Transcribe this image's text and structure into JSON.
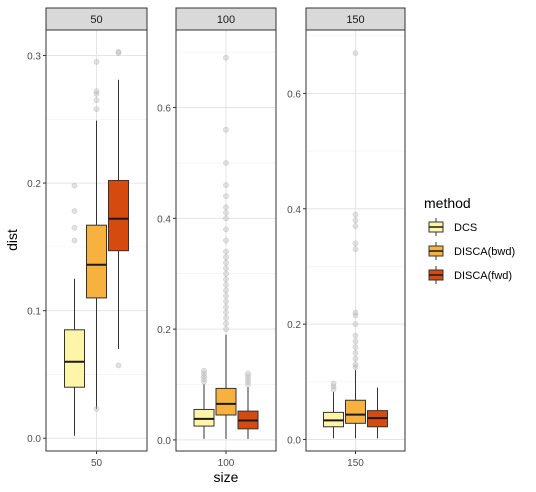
{
  "chart_data": {
    "type": "boxplot",
    "xlabel": "size",
    "ylabel": "dist",
    "legend": {
      "title": "method",
      "position": "right",
      "items": [
        {
          "name": "DCS",
          "color": "#FFF5A8"
        },
        {
          "name": "DISCA(bwd)",
          "color": "#F6B13E"
        },
        {
          "name": "DISCA(fwd)",
          "color": "#D54A0F"
        }
      ]
    },
    "grid": true,
    "facets": [
      {
        "strip": "50",
        "x_tick": "50",
        "ylim": [
          -0.01,
          0.32
        ],
        "y_ticks": [
          0.0,
          0.1,
          0.2,
          0.3
        ],
        "y_tick_labels": [
          "0.0",
          "0.1",
          "0.2",
          "0.3"
        ],
        "boxes": [
          {
            "method": "DCS",
            "whisker_low": 0.002,
            "q1": 0.04,
            "median": 0.06,
            "q3": 0.085,
            "whisker_high": 0.125,
            "outliers": [
              0.155,
              0.165,
              0.178,
              0.198
            ]
          },
          {
            "method": "DISCA(bwd)",
            "whisker_low": 0.023,
            "q1": 0.11,
            "median": 0.136,
            "q3": 0.167,
            "whisker_high": 0.249,
            "outliers": [
              0.023,
              0.258,
              0.265,
              0.27,
              0.272,
              0.295
            ]
          },
          {
            "method": "DISCA(fwd)",
            "whisker_low": 0.07,
            "q1": 0.147,
            "median": 0.172,
            "q3": 0.202,
            "whisker_high": 0.281,
            "outliers": [
              0.057,
              0.302,
              0.303
            ]
          }
        ]
      },
      {
        "strip": "100",
        "x_tick": "100",
        "ylim": [
          -0.02,
          0.74
        ],
        "y_ticks": [
          0.0,
          0.2,
          0.4,
          0.6
        ],
        "y_tick_labels": [
          "0.0",
          "0.2",
          "0.4",
          "0.6"
        ],
        "boxes": [
          {
            "method": "DCS",
            "whisker_low": 0.002,
            "q1": 0.025,
            "median": 0.038,
            "q3": 0.055,
            "whisker_high": 0.1,
            "outliers": [
              0.105,
              0.11,
              0.115,
              0.12,
              0.125
            ]
          },
          {
            "method": "DISCA(bwd)",
            "whisker_low": 0.002,
            "q1": 0.045,
            "median": 0.065,
            "q3": 0.093,
            "whisker_high": 0.19,
            "outliers": [
              0.2,
              0.21,
              0.22,
              0.23,
              0.24,
              0.25,
              0.26,
              0.27,
              0.28,
              0.29,
              0.3,
              0.31,
              0.32,
              0.33,
              0.34,
              0.36,
              0.38,
              0.4,
              0.41,
              0.42,
              0.44,
              0.46,
              0.5,
              0.56,
              0.69
            ]
          },
          {
            "method": "DISCA(fwd)",
            "whisker_low": 0.002,
            "q1": 0.02,
            "median": 0.035,
            "q3": 0.052,
            "whisker_high": 0.095,
            "outliers": [
              0.1,
              0.105,
              0.11,
              0.115,
              0.12
            ]
          }
        ]
      },
      {
        "strip": "150",
        "x_tick": "150",
        "ylim": [
          -0.02,
          0.71
        ],
        "y_ticks": [
          0.0,
          0.2,
          0.4,
          0.6
        ],
        "y_tick_labels": [
          "0.0",
          "0.2",
          "0.4",
          "0.6"
        ],
        "boxes": [
          {
            "method": "DCS",
            "whisker_low": 0.002,
            "q1": 0.022,
            "median": 0.033,
            "q3": 0.047,
            "whisker_high": 0.082,
            "outliers": [
              0.087,
              0.092,
              0.097
            ]
          },
          {
            "method": "DISCA(bwd)",
            "whisker_low": 0.002,
            "q1": 0.028,
            "median": 0.043,
            "q3": 0.068,
            "whisker_high": 0.12,
            "outliers": [
              0.125,
              0.13,
              0.14,
              0.15,
              0.16,
              0.17,
              0.18,
              0.2,
              0.215,
              0.22,
              0.33,
              0.34,
              0.37,
              0.38,
              0.39,
              0.67
            ]
          },
          {
            "method": "DISCA(fwd)",
            "whisker_low": 0.002,
            "q1": 0.022,
            "median": 0.037,
            "q3": 0.05,
            "whisker_high": 0.09,
            "outliers": []
          }
        ]
      }
    ]
  }
}
